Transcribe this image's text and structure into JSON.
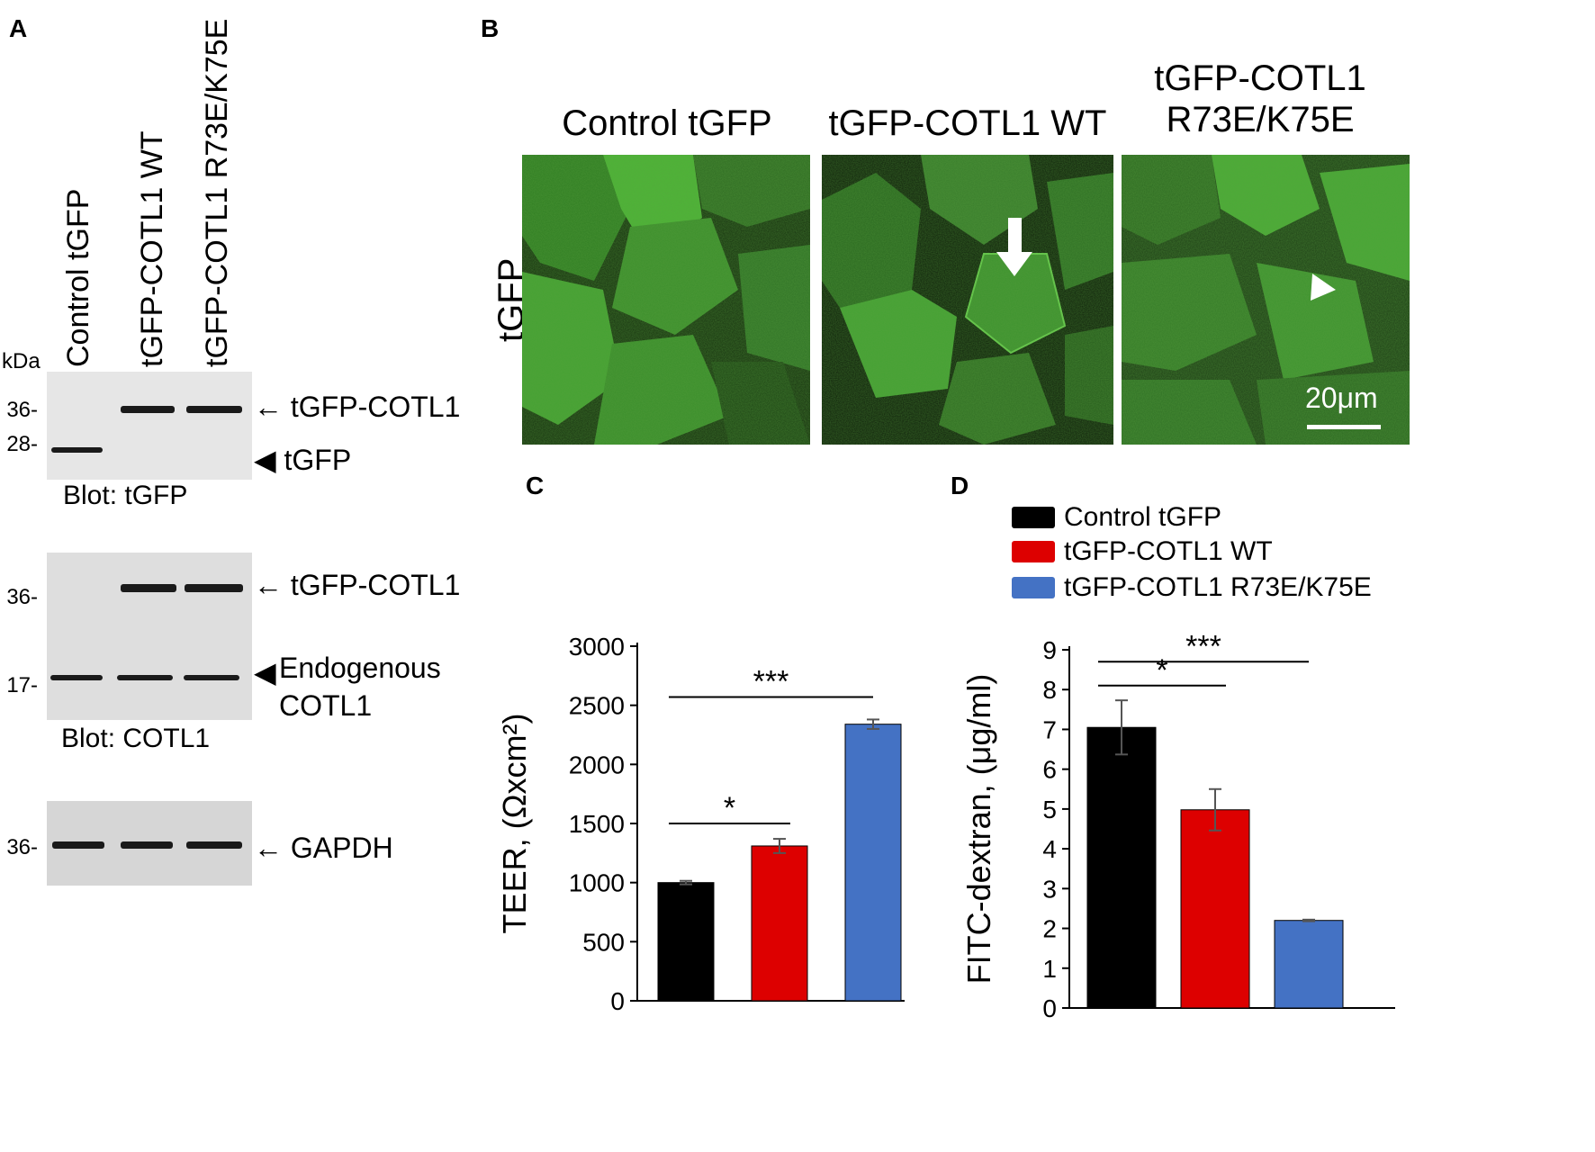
{
  "panels": {
    "a": "A",
    "b": "B",
    "c": "C",
    "d": "D"
  },
  "panel_a": {
    "lane_labels": [
      "Control tGFP",
      "tGFP-COTL1  WT",
      "tGFP-COTL1  R73E/K75E"
    ],
    "kda_label": "kDa",
    "blot1": {
      "mw": [
        "36-",
        "28-"
      ],
      "annotations": [
        "← tGFP-COTL1",
        "◀ tGFP"
      ],
      "caption": "Blot:  tGFP"
    },
    "blot2": {
      "mw": [
        "36-",
        "17-"
      ],
      "annotations": [
        "← tGFP-COTL1",
        "◀"
      ],
      "endogenous_label": [
        "Endogenous",
        "COTL1"
      ],
      "caption": "Blot:  COTL1"
    },
    "blot3": {
      "mw": [
        "36-"
      ],
      "annotations": [
        "← GAPDH"
      ]
    }
  },
  "panel_b": {
    "row_label": "tGFP",
    "col_titles": [
      "Control tGFP",
      "tGFP-COTL1 WT",
      [
        "tGFP-COTL1",
        "R73E/K75E"
      ]
    ],
    "scale_bar": "20μm",
    "colors": {
      "fluorescence": "#39c02a",
      "background": "#0d1a0a"
    }
  },
  "legend": {
    "entries": [
      {
        "label": "Control tGFP",
        "color": "#000000"
      },
      {
        "label": "tGFP-COTL1 WT",
        "color": "#dd0000"
      },
      {
        "label": "tGFP-COTL1 R73E/K75E",
        "color": "#4472c4"
      }
    ]
  },
  "chart_data": [
    {
      "type": "bar",
      "panel": "C",
      "categories": [
        "Control tGFP",
        "tGFP-COTL1 WT",
        "tGFP-COTL1 R73E/K75E"
      ],
      "values": [
        1000,
        1310,
        2340
      ],
      "errors": [
        15,
        60,
        40
      ],
      "colors": [
        "#000000",
        "#dd0000",
        "#4472c4"
      ],
      "ylabel": "TEER, (Ωxcm²)",
      "ylim": [
        0,
        3000
      ],
      "yticks": [
        0,
        500,
        1000,
        1500,
        2000,
        2500,
        3000
      ],
      "significance": [
        {
          "from": 0,
          "to": 1,
          "label": "*",
          "level": 1500
        },
        {
          "from": 0,
          "to": 2,
          "label": "***",
          "level": 2570
        }
      ]
    },
    {
      "type": "bar",
      "panel": "D",
      "categories": [
        "Control tGFP",
        "tGFP-COTL1 WT",
        "tGFP-COTL1 R73E/K75E"
      ],
      "values": [
        7.05,
        4.98,
        2.2
      ],
      "errors": [
        0.68,
        0.52,
        0.02
      ],
      "colors": [
        "#000000",
        "#dd0000",
        "#4472c4"
      ],
      "ylabel": "FITC-dextran, (μg/ml)",
      "ylim": [
        0,
        9
      ],
      "yticks": [
        0,
        1,
        2,
        3,
        4,
        5,
        6,
        7,
        8,
        9
      ],
      "significance": [
        {
          "from": 0,
          "to": 1,
          "label": "*",
          "level": 8.1
        },
        {
          "from": 0,
          "to": 2,
          "label": "***",
          "level": 8.7
        }
      ]
    }
  ]
}
